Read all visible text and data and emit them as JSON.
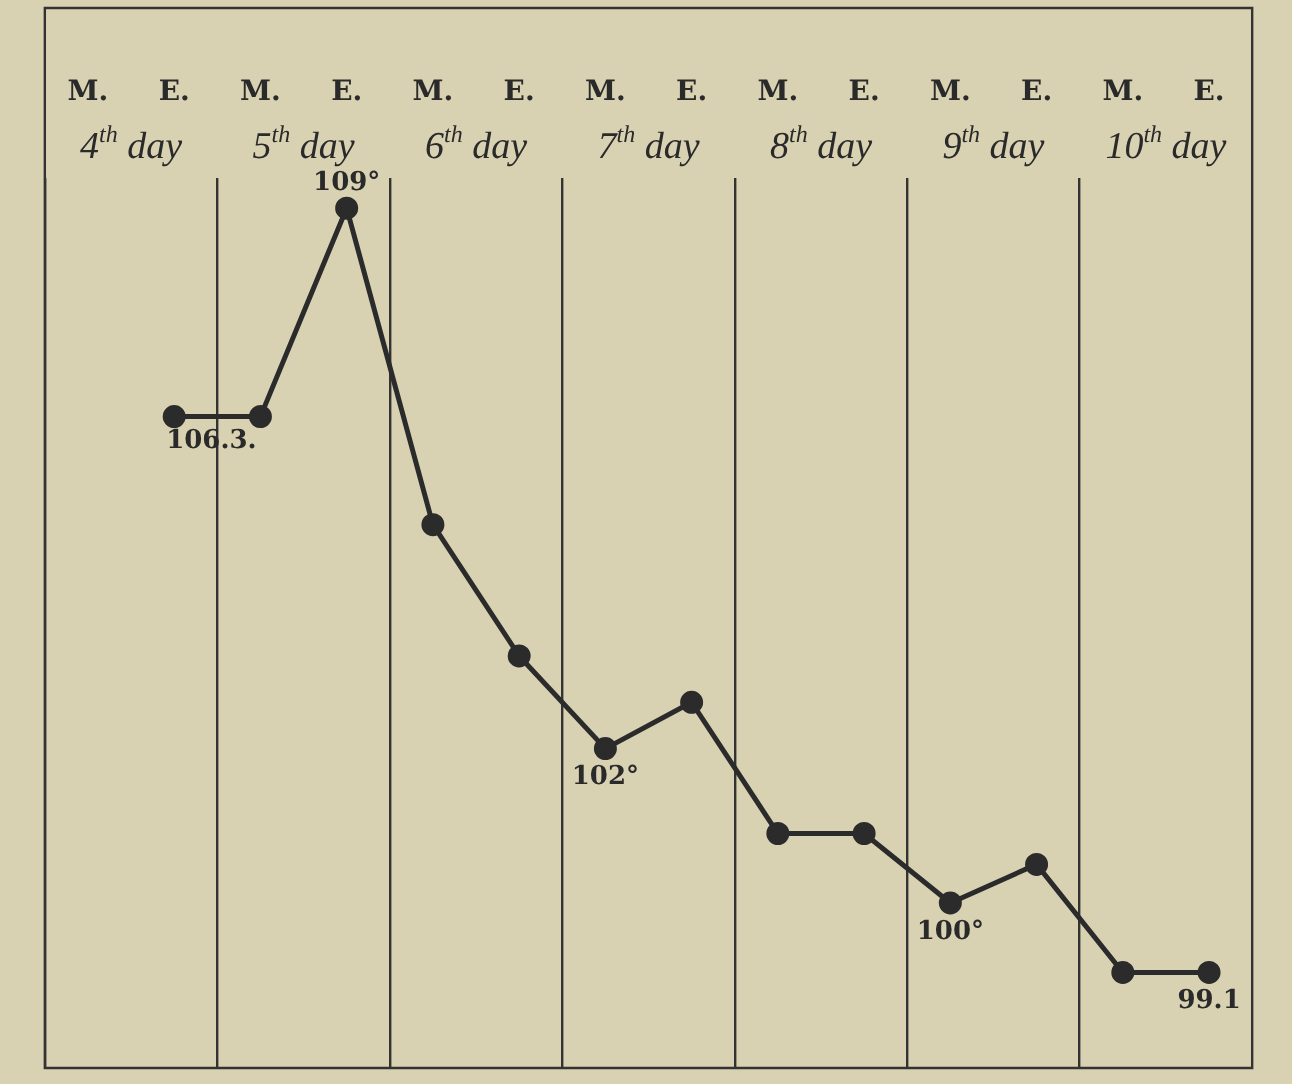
{
  "chart_data": {
    "type": "line",
    "categories": [
      "M.",
      "E.",
      "M.",
      "E.",
      "M.",
      "E.",
      "M.",
      "E.",
      "M.",
      "E.",
      "M.",
      "E.",
      "M.",
      "E."
    ],
    "series": [
      {
        "color": "#2b2b2b",
        "values": [
          null,
          106.3,
          106.3,
          109,
          104.9,
          103.2,
          102,
          102.6,
          100.9,
          100.9,
          100,
          100.5,
          99.1,
          99.1
        ],
        "value_labels": [
          null,
          "106.3.",
          null,
          "109°",
          null,
          null,
          "102°",
          null,
          null,
          null,
          "100°",
          null,
          null,
          "99.1"
        ]
      }
    ],
    "annotations": [
      "4$^{th}$ day",
      "5$^{th}$ day",
      "6$^{th}$ day",
      "7$^{th}$ day",
      "8$^{th}$ day",
      "9$^{th}$ day",
      "10$^{th}$ day"
    ],
    "grid": "x",
    "marker": "circle",
    "line_style": "solid",
    "tick_labels": "x"
  }
}
